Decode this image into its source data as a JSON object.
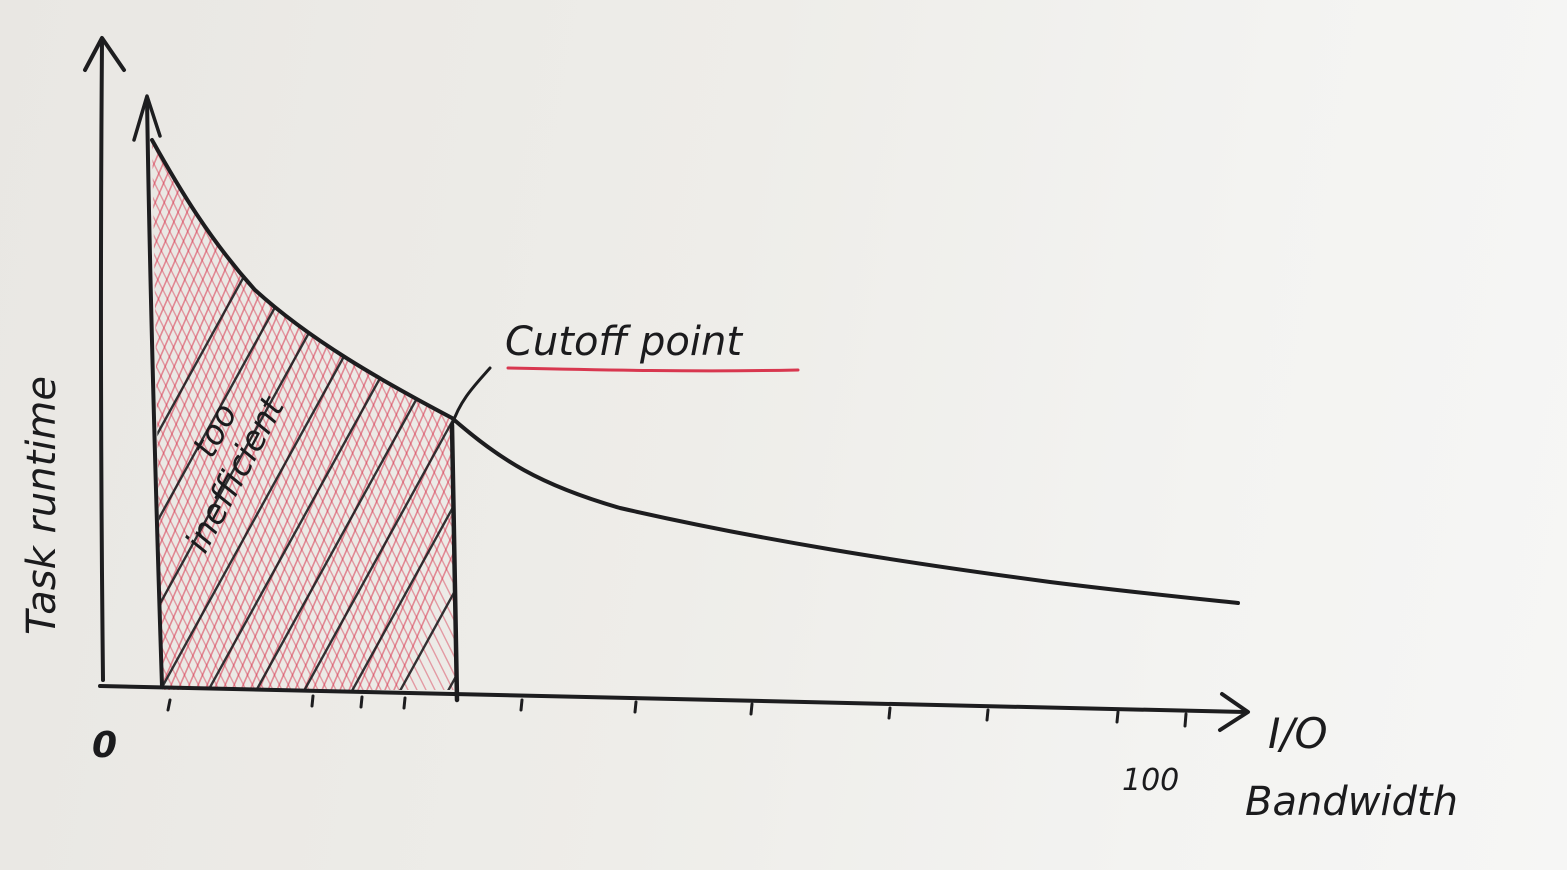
{
  "diagram": {
    "y_axis_label": "Task runtime",
    "x_axis_label_line1": "I/O",
    "x_axis_label_line2": "Bandwidth",
    "origin_label": "0",
    "x_max_tick_label": "100",
    "cutoff_label": "Cutoff point",
    "region_label_line1": "too",
    "region_label_line2": "inefficient",
    "colors": {
      "ink": "#1d1d1f",
      "shade": "#d8374f",
      "paper": "#eeede9"
    }
  }
}
